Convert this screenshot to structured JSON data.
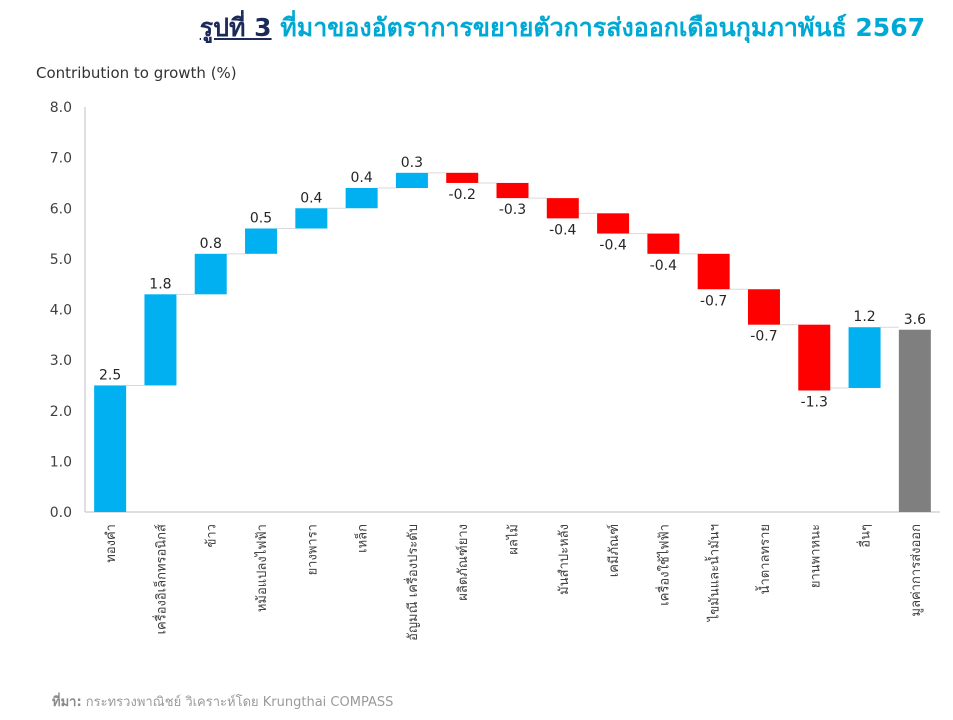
{
  "title": {
    "prefix": "รูปที่ 3",
    "text": "ที่มาของอัตราการขยายตัวการส่งออกเดือนกุมภาพันธ์ 2567"
  },
  "source": {
    "label": "ที่มา:",
    "text": "กระทรวงพาณิชย์ วิเคราะห์โดย Krungthai COMPASS"
  },
  "colors": {
    "increase": "#00b0f0",
    "decrease": "#ff0000",
    "total": "#7f7f7f",
    "title_prefix": "#1c2a5a",
    "title_main": "#00a9d4"
  },
  "chart_data": {
    "type": "bar",
    "subtype": "waterfall",
    "ylabel": "Contribution to growth (%)",
    "ylim": [
      0,
      8
    ],
    "yticks": [
      "0.0",
      "1.0",
      "2.0",
      "3.0",
      "4.0",
      "5.0",
      "6.0",
      "7.0",
      "8.0"
    ],
    "grid": false,
    "categories": [
      "ทองคำ",
      "เครื่องอิเล็กทรอนิกส์",
      "ข้าว",
      "หม้อแปลงไฟฟ้า",
      "ยางพารา",
      "เหล็ก",
      "อัญมณี เครื่องประดับ",
      "ผลิตภัณฑ์ยาง",
      "ผลไม้",
      "มันสำปะหลัง",
      "เคมีภัณฑ์",
      "เครื่องใช้ไฟฟ้า",
      "ไขมันและน้ำมันฯ",
      "น้ำตาลทราย",
      "ยานพาหนะ",
      "อื่นๆ",
      "มูลค่าการส่งออก"
    ],
    "values": [
      2.5,
      1.8,
      0.8,
      0.5,
      0.4,
      0.4,
      0.3,
      -0.2,
      -0.3,
      -0.4,
      -0.4,
      -0.4,
      -0.7,
      -0.7,
      -1.3,
      1.2,
      3.6
    ],
    "value_labels": [
      "2.5",
      "1.8",
      "0.8",
      "0.5",
      "0.4",
      "0.4",
      "0.3",
      "-0.2",
      "-0.3",
      "-0.4",
      "-0.4",
      "-0.4",
      "-0.7",
      "-0.7",
      "-1.3",
      "1.2",
      "3.6"
    ],
    "bases": [
      0,
      2.5,
      4.3,
      5.1,
      5.6,
      6.0,
      6.4,
      6.7,
      6.5,
      6.2,
      5.9,
      5.5,
      5.1,
      4.4,
      3.7,
      2.45,
      0
    ],
    "is_total": [
      false,
      false,
      false,
      false,
      false,
      false,
      false,
      false,
      false,
      false,
      false,
      false,
      false,
      false,
      false,
      false,
      true
    ]
  }
}
